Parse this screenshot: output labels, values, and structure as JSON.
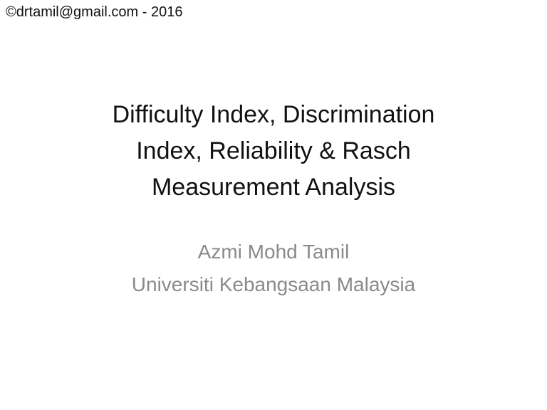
{
  "slide": {
    "copyright": "©drtamil@gmail.com - 2016",
    "title_full": "Difficulty Index, Discrimination Index, Reliability & Rasch Measurement Analysis",
    "title_lines": [
      "Difficulty Index, Discrimination",
      "Index, Reliability & Rasch",
      "Measurement Analysis"
    ],
    "subtitle_lines": [
      "Azmi Mohd Tamil",
      "Universiti Kebangsaan Malaysia"
    ],
    "colors": {
      "background": "#ffffff",
      "copyright_text": "#111111",
      "title_text": "#111111",
      "subtitle_text": "#8a8a8a"
    }
  }
}
